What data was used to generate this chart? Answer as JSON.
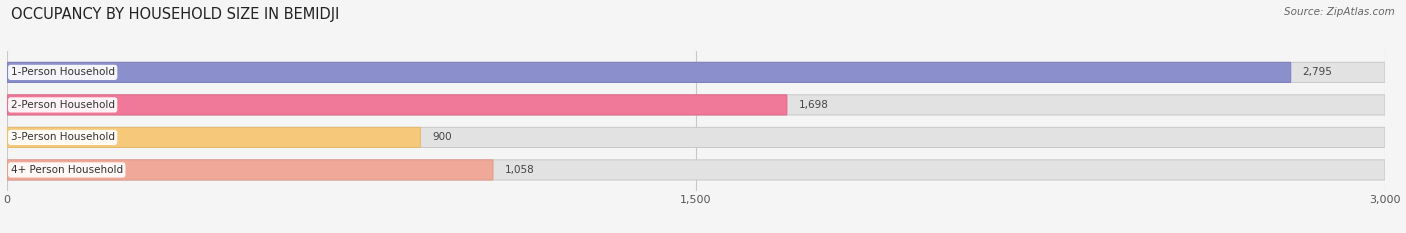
{
  "title": "OCCUPANCY BY HOUSEHOLD SIZE IN BEMIDJI",
  "source": "Source: ZipAtlas.com",
  "categories": [
    "1-Person Household",
    "2-Person Household",
    "3-Person Household",
    "4+ Person Household"
  ],
  "values": [
    2795,
    1698,
    900,
    1058
  ],
  "bar_colors": [
    "#8b8fcc",
    "#f07898",
    "#f5c87a",
    "#f0a898"
  ],
  "bar_edge_colors": [
    "#7a7fbc",
    "#e06888",
    "#e5b86a",
    "#e09888"
  ],
  "xlim": [
    0,
    3000
  ],
  "xticks": [
    0,
    1500,
    3000
  ],
  "background_color": "#f5f5f5",
  "bar_background_color": "#e2e2e2",
  "title_fontsize": 10.5,
  "source_fontsize": 7.5,
  "bar_label_fontsize": 7.5,
  "category_label_fontsize": 7.5,
  "category_label_color": "#333333",
  "value_label_color": "#444444"
}
